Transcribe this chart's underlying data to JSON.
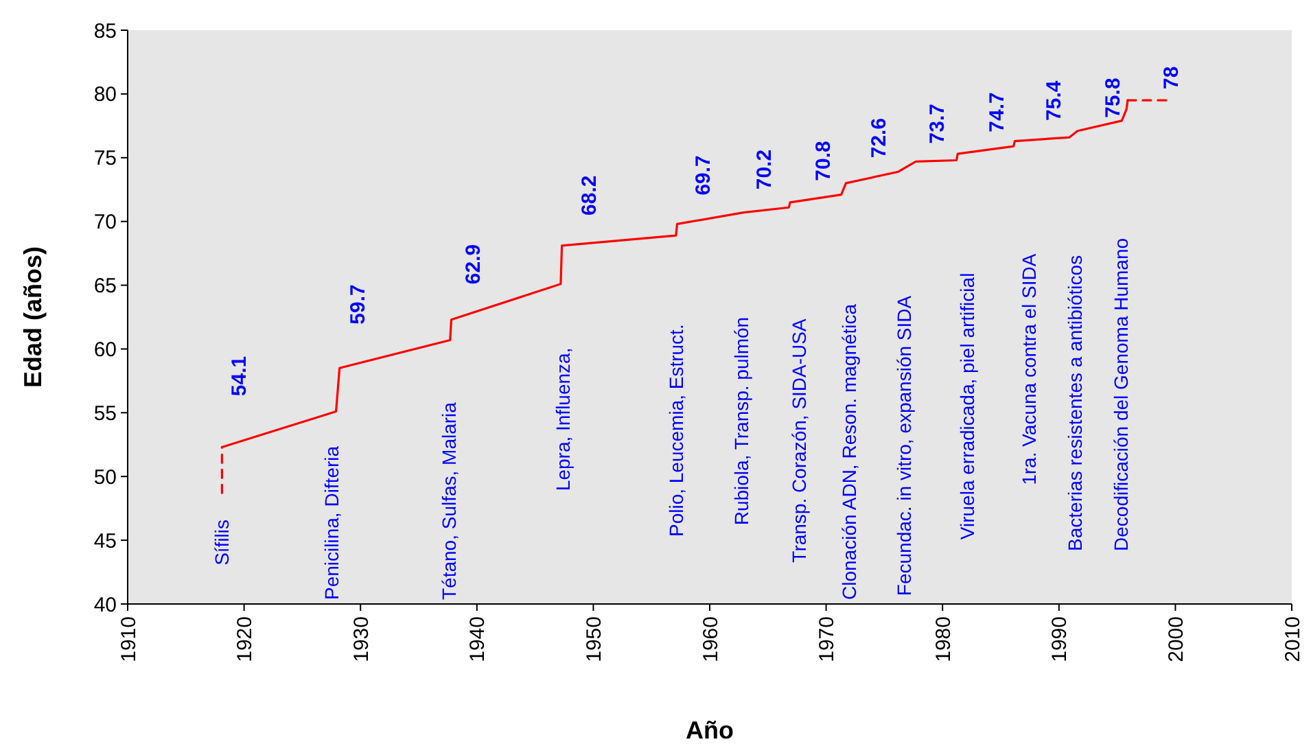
{
  "chart_data": {
    "type": "line",
    "xlabel": "Año",
    "ylabel": "Edad (años)",
    "xlim": [
      1910,
      2010
    ],
    "xticks": [
      1910,
      1920,
      1930,
      1940,
      1950,
      1960,
      1970,
      1980,
      1990,
      2000,
      2010
    ],
    "ylim": [
      40,
      85
    ],
    "yticks": [
      40,
      45,
      50,
      55,
      60,
      65,
      70,
      75,
      80,
      85
    ],
    "grid": false,
    "marker": "none",
    "series": [
      {
        "color": "#ff0000",
        "line_style": "dashed",
        "x": [
          1918.1,
          1918.1
        ],
        "values": [
          48.7,
          52.3
        ]
      },
      {
        "color": "#ff0000",
        "line_style": "solid",
        "x": [
          1918.1,
          1927.9,
          1928.2,
          1937.7,
          1937.8,
          1947.2,
          1947.3,
          1957.1,
          1957.2,
          1962.9,
          1966.8,
          1966.9,
          1971.3,
          1971.7,
          1976.2,
          1977.7,
          1981.2,
          1981.3,
          1986.1,
          1986.2,
          1990.9,
          1991.6,
          1995.4,
          1995.8,
          1995.9
        ],
        "values": [
          52.3,
          55.1,
          58.5,
          60.7,
          62.3,
          65.1,
          68.1,
          68.9,
          69.8,
          70.7,
          71.1,
          71.5,
          72.1,
          73.0,
          73.9,
          74.7,
          74.8,
          75.3,
          75.9,
          76.3,
          76.6,
          77.1,
          77.9,
          78.8,
          79.5
        ]
      },
      {
        "color": "#ff0000",
        "line_style": "dashed",
        "x": [
          1995.9,
          1999.2
        ],
        "values": [
          79.5,
          79.5
        ]
      }
    ],
    "annotations": [
      "Sífilis",
      "54.1",
      "Penicilina, Difteria",
      "59.7",
      "Tétano, Sulfas, Malaria",
      "62.9",
      "Lepra, Influenza,",
      "68.2",
      "Polio, Leucemia, Estruct.",
      "69.7",
      "Rubiola, Transp. pulmón",
      "70.2",
      "Transp. Corazón, SIDA-USA",
      "70.8",
      "Clonación ADN, Reson. magnética",
      "72.6",
      "Fecundac. in vitro, expansión SIDA",
      "73.7",
      "Viruela erradicada, piel artificial",
      "74.7",
      "1ra. Vacuna contra el SIDA",
      "75.4",
      "Bacterias resistentes a antibióticos",
      "75.8",
      "Decodificación del Genoma Humano",
      "78"
    ]
  }
}
